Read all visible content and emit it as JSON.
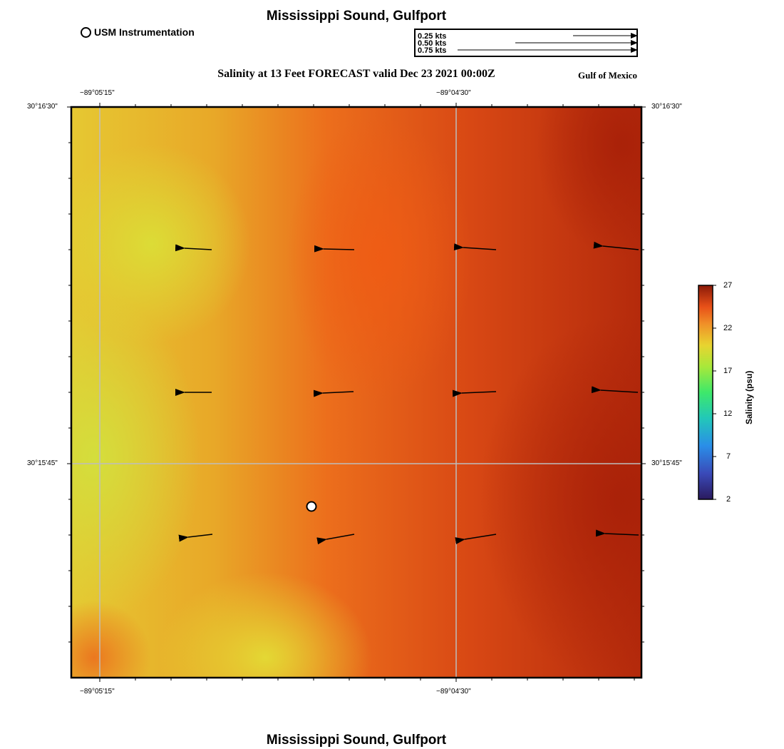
{
  "header": {
    "title": "Mississippi Sound, Gulfport",
    "subtitle": "Salinity at 13 Feet FORECAST valid Dec 23 2021 00:00Z",
    "region": "Gulf of Mexico"
  },
  "footer": {
    "title": "Mississippi Sound, Gulfport"
  },
  "legend": {
    "marker_label": "USM Instrumentation"
  },
  "speed_scale": {
    "entries": [
      {
        "label": "0.25 kts",
        "speed": 0.25
      },
      {
        "label": "0.50 kts",
        "speed": 0.5
      },
      {
        "label": "0.75 kts",
        "speed": 0.75
      }
    ]
  },
  "axes": {
    "lon_labels": [
      "−89°05'15\"",
      "−89°04'30\""
    ],
    "lat_labels": [
      "30°16'30\"",
      "30°15'45\""
    ]
  },
  "colorbar": {
    "title": "Salinity (psu)",
    "ticks": [
      "27",
      "22",
      "17",
      "12",
      "7",
      "2"
    ],
    "min": 2,
    "max": 27
  },
  "colors": {
    "low": "#2a1a5e",
    "mid_low": "#2a8ee8",
    "mid": "#3ee86a",
    "mid_high": "#e8e030",
    "high_orange": "#f06418",
    "max": "#8a1a08"
  }
}
